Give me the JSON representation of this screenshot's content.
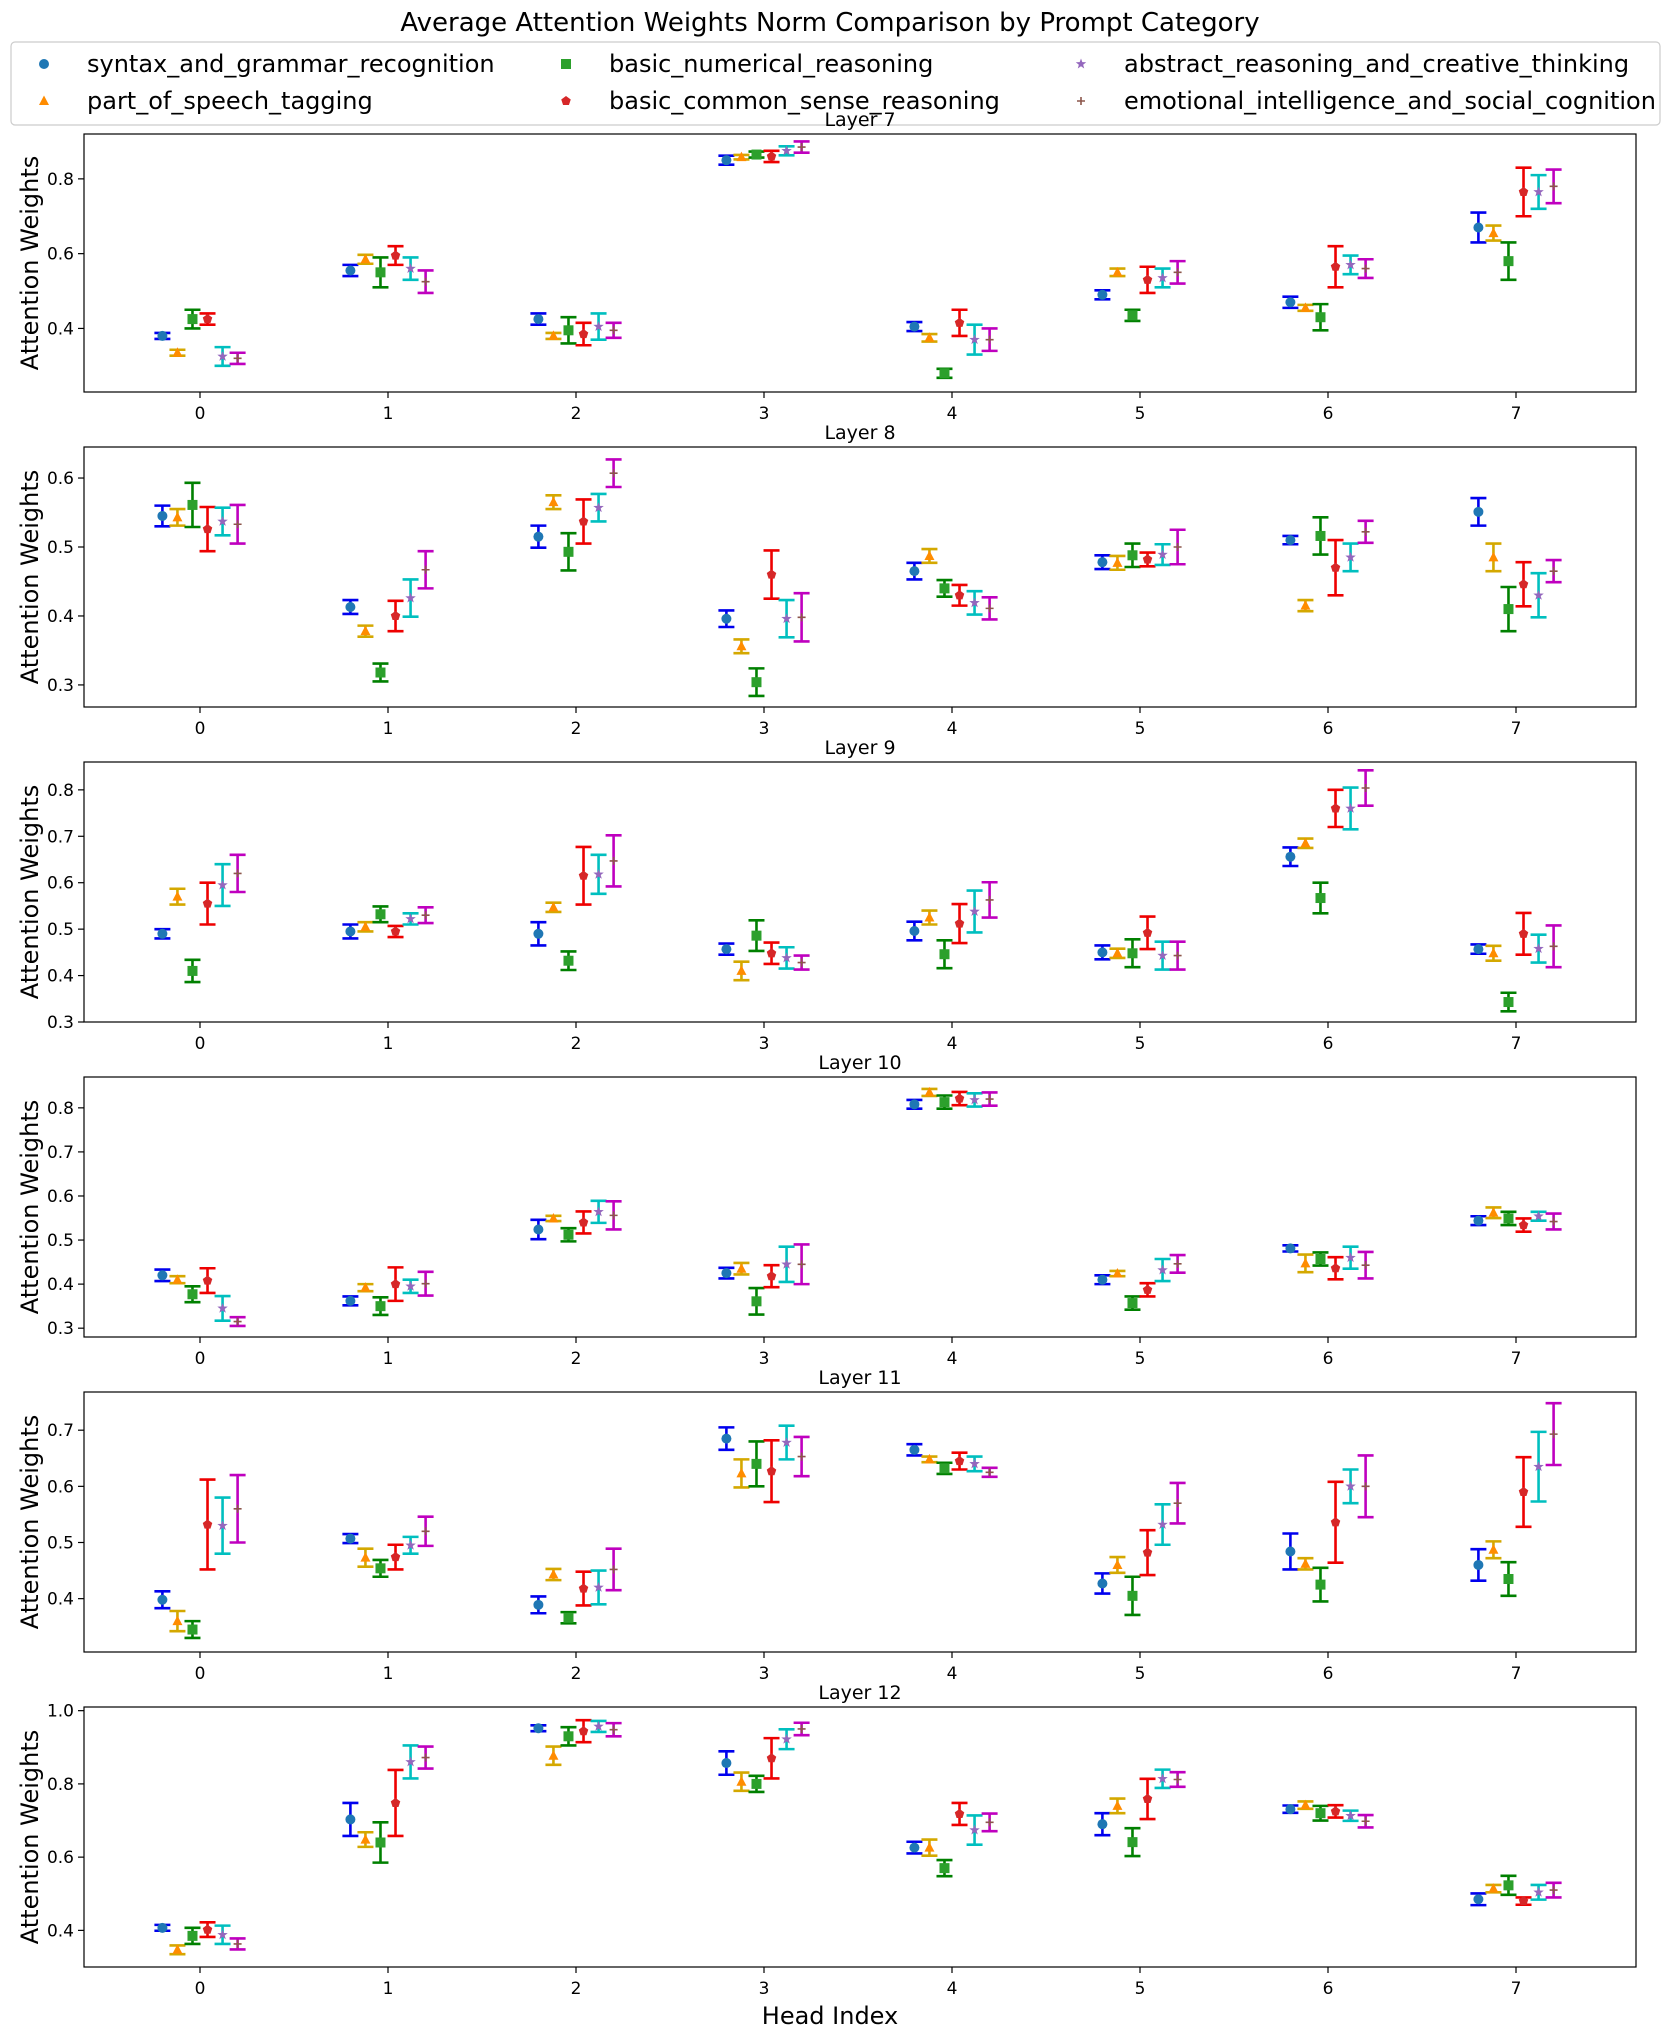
{
  "figure": {
    "title": "Average Attention Weights Norm Comparison by Prompt Category",
    "xlabel": "Head Index",
    "ylabel": "Attention Weights"
  },
  "legend": [
    {
      "name": "syntax_and_grammar_recognition",
      "color": "#1f77b4",
      "errColor": "#0000ee",
      "marker": "circle"
    },
    {
      "name": "part_of_speech_tagging",
      "color": "#ff8c00",
      "errColor": "#d4a800",
      "marker": "triangle"
    },
    {
      "name": "basic_numerical_reasoning",
      "color": "#2ca02c",
      "errColor": "#008000",
      "marker": "square"
    },
    {
      "name": "basic_common_sense_reasoning",
      "color": "#d62728",
      "errColor": "#ee0000",
      "marker": "pentagon"
    },
    {
      "name": "abstract_reasoning_and_creative_thinking",
      "color": "#9467bd",
      "errColor": "#00bfbf",
      "marker": "star"
    },
    {
      "name": "emotional_intelligence_and_social_cognition",
      "color": "#8c564b",
      "errColor": "#bf00bf",
      "marker": "plus"
    }
  ],
  "chart_data": [
    {
      "type": "scatter",
      "title": "Layer 7",
      "xlabel": "",
      "ylabel": "Attention Weights",
      "categories": [
        0,
        1,
        2,
        3,
        4,
        5,
        6,
        7
      ],
      "ylim": [
        0.23,
        0.92
      ],
      "yticks": [
        0.4,
        0.6,
        0.8
      ],
      "series": [
        {
          "name": "syntax_and_grammar_recognition",
          "values": [
            0.38,
            0.555,
            0.425,
            0.85,
            0.405,
            0.49,
            0.47,
            0.67
          ],
          "err": [
            0.008,
            0.015,
            0.015,
            0.012,
            0.012,
            0.012,
            0.015,
            0.04
          ]
        },
        {
          "name": "part_of_speech_tagging",
          "values": [
            0.335,
            0.585,
            0.38,
            0.858,
            0.375,
            0.55,
            0.455,
            0.655
          ],
          "err": [
            0.008,
            0.012,
            0.008,
            0.006,
            0.01,
            0.01,
            0.008,
            0.02
          ]
        },
        {
          "name": "basic_numerical_reasoning",
          "values": [
            0.425,
            0.55,
            0.395,
            0.865,
            0.28,
            0.435,
            0.43,
            0.58
          ],
          "err": [
            0.025,
            0.04,
            0.035,
            0.008,
            0.012,
            0.015,
            0.035,
            0.05
          ]
        },
        {
          "name": "basic_common_sense_reasoning",
          "values": [
            0.425,
            0.595,
            0.385,
            0.86,
            0.415,
            0.53,
            0.565,
            0.765
          ],
          "err": [
            0.015,
            0.025,
            0.03,
            0.015,
            0.035,
            0.035,
            0.055,
            0.065
          ]
        },
        {
          "name": "abstract_reasoning_and_creative_thinking",
          "values": [
            0.325,
            0.56,
            0.405,
            0.875,
            0.37,
            0.535,
            0.57,
            0.765
          ],
          "err": [
            0.025,
            0.03,
            0.035,
            0.012,
            0.04,
            0.025,
            0.025,
            0.045
          ]
        },
        {
          "name": "emotional_intelligence_and_social_cognition",
          "values": [
            0.32,
            0.525,
            0.395,
            0.885,
            0.37,
            0.55,
            0.56,
            0.78
          ],
          "err": [
            0.015,
            0.03,
            0.02,
            0.015,
            0.03,
            0.03,
            0.025,
            0.045
          ]
        }
      ]
    },
    {
      "type": "scatter",
      "title": "Layer 8",
      "xlabel": "",
      "ylabel": "Attention Weights",
      "categories": [
        0,
        1,
        2,
        3,
        4,
        5,
        6,
        7
      ],
      "ylim": [
        0.268,
        0.645
      ],
      "yticks": [
        0.3,
        0.4,
        0.5,
        0.6
      ],
      "series": [
        {
          "name": "syntax_and_grammar_recognition",
          "values": [
            0.545,
            0.413,
            0.515,
            0.396,
            0.465,
            0.478,
            0.51,
            0.551
          ],
          "err": [
            0.015,
            0.01,
            0.016,
            0.012,
            0.012,
            0.01,
            0.006,
            0.02
          ]
        },
        {
          "name": "part_of_speech_tagging",
          "values": [
            0.543,
            0.378,
            0.565,
            0.356,
            0.487,
            0.477,
            0.415,
            0.485
          ],
          "err": [
            0.012,
            0.008,
            0.01,
            0.01,
            0.01,
            0.01,
            0.008,
            0.02
          ]
        },
        {
          "name": "basic_numerical_reasoning",
          "values": [
            0.561,
            0.318,
            0.493,
            0.304,
            0.44,
            0.488,
            0.516,
            0.41
          ],
          "err": [
            0.032,
            0.013,
            0.027,
            0.02,
            0.012,
            0.017,
            0.027,
            0.032
          ]
        },
        {
          "name": "basic_common_sense_reasoning",
          "values": [
            0.526,
            0.4,
            0.537,
            0.46,
            0.43,
            0.482,
            0.47,
            0.446
          ],
          "err": [
            0.032,
            0.022,
            0.032,
            0.035,
            0.015,
            0.01,
            0.04,
            0.032
          ]
        },
        {
          "name": "abstract_reasoning_and_creative_thinking",
          "values": [
            0.537,
            0.426,
            0.557,
            0.396,
            0.419,
            0.489,
            0.485,
            0.43
          ],
          "err": [
            0.02,
            0.027,
            0.02,
            0.027,
            0.017,
            0.015,
            0.02,
            0.032
          ]
        },
        {
          "name": "emotional_intelligence_and_social_cognition",
          "values": [
            0.533,
            0.467,
            0.607,
            0.398,
            0.411,
            0.5,
            0.522,
            0.465
          ],
          "err": [
            0.028,
            0.027,
            0.02,
            0.035,
            0.016,
            0.025,
            0.016,
            0.016
          ]
        }
      ]
    },
    {
      "type": "scatter",
      "title": "Layer 9",
      "xlabel": "",
      "ylabel": "Attention Weights",
      "categories": [
        0,
        1,
        2,
        3,
        4,
        5,
        6,
        7
      ],
      "ylim": [
        0.3,
        0.86
      ],
      "yticks": [
        0.3,
        0.4,
        0.5,
        0.6,
        0.7,
        0.8
      ],
      "series": [
        {
          "name": "syntax_and_grammar_recognition",
          "values": [
            0.49,
            0.495,
            0.49,
            0.457,
            0.496,
            0.45,
            0.656,
            0.457
          ],
          "err": [
            0.01,
            0.015,
            0.025,
            0.012,
            0.02,
            0.015,
            0.02,
            0.01
          ]
        },
        {
          "name": "part_of_speech_tagging",
          "values": [
            0.57,
            0.505,
            0.547,
            0.41,
            0.525,
            0.448,
            0.685,
            0.448
          ],
          "err": [
            0.017,
            0.01,
            0.01,
            0.02,
            0.015,
            0.01,
            0.01,
            0.016
          ]
        },
        {
          "name": "basic_numerical_reasoning",
          "values": [
            0.41,
            0.532,
            0.432,
            0.486,
            0.446,
            0.448,
            0.567,
            0.343
          ],
          "err": [
            0.024,
            0.017,
            0.02,
            0.033,
            0.03,
            0.03,
            0.033,
            0.02
          ]
        },
        {
          "name": "basic_common_sense_reasoning",
          "values": [
            0.555,
            0.495,
            0.615,
            0.448,
            0.512,
            0.492,
            0.76,
            0.49
          ],
          "err": [
            0.045,
            0.012,
            0.062,
            0.023,
            0.042,
            0.035,
            0.04,
            0.045
          ]
        },
        {
          "name": "abstract_reasoning_and_creative_thinking",
          "values": [
            0.595,
            0.522,
            0.618,
            0.438,
            0.538,
            0.443,
            0.76,
            0.458
          ],
          "err": [
            0.045,
            0.012,
            0.042,
            0.023,
            0.045,
            0.03,
            0.045,
            0.03
          ]
        },
        {
          "name": "emotional_intelligence_and_social_cognition",
          "values": [
            0.62,
            0.53,
            0.647,
            0.428,
            0.563,
            0.443,
            0.804,
            0.463
          ],
          "err": [
            0.04,
            0.017,
            0.055,
            0.015,
            0.038,
            0.03,
            0.038,
            0.045
          ]
        }
      ]
    },
    {
      "type": "scatter",
      "title": "Layer 10",
      "xlabel": "",
      "ylabel": "Attention Weights",
      "categories": [
        0,
        1,
        2,
        3,
        4,
        5,
        6,
        7
      ],
      "ylim": [
        0.28,
        0.87
      ],
      "yticks": [
        0.3,
        0.4,
        0.5,
        0.6,
        0.7,
        0.8
      ],
      "series": [
        {
          "name": "syntax_and_grammar_recognition",
          "values": [
            0.42,
            0.362,
            0.524,
            0.425,
            0.808,
            0.41,
            0.481,
            0.544
          ],
          "err": [
            0.013,
            0.01,
            0.022,
            0.012,
            0.01,
            0.01,
            0.007,
            0.01
          ]
        },
        {
          "name": "part_of_speech_tagging",
          "values": [
            0.41,
            0.392,
            0.549,
            0.435,
            0.835,
            0.424,
            0.447,
            0.562
          ],
          "err": [
            0.008,
            0.008,
            0.006,
            0.013,
            0.008,
            0.006,
            0.02,
            0.012
          ]
        },
        {
          "name": "basic_numerical_reasoning",
          "values": [
            0.377,
            0.35,
            0.512,
            0.361,
            0.813,
            0.357,
            0.457,
            0.549
          ],
          "err": [
            0.018,
            0.02,
            0.015,
            0.03,
            0.015,
            0.015,
            0.015,
            0.015
          ]
        },
        {
          "name": "basic_common_sense_reasoning",
          "values": [
            0.408,
            0.4,
            0.54,
            0.418,
            0.821,
            0.387,
            0.436,
            0.534
          ],
          "err": [
            0.028,
            0.038,
            0.025,
            0.025,
            0.015,
            0.015,
            0.025,
            0.015
          ]
        },
        {
          "name": "abstract_reasoning_and_creative_thinking",
          "values": [
            0.345,
            0.395,
            0.564,
            0.445,
            0.818,
            0.432,
            0.46,
            0.554
          ],
          "err": [
            0.028,
            0.015,
            0.025,
            0.04,
            0.015,
            0.025,
            0.025,
            0.01
          ]
        },
        {
          "name": "emotional_intelligence_and_social_cognition",
          "values": [
            0.315,
            0.401,
            0.556,
            0.445,
            0.82,
            0.446,
            0.443,
            0.542
          ],
          "err": [
            0.01,
            0.027,
            0.032,
            0.045,
            0.015,
            0.02,
            0.03,
            0.018
          ]
        }
      ]
    },
    {
      "type": "scatter",
      "title": "Layer 11",
      "xlabel": "",
      "ylabel": "Attention Weights",
      "categories": [
        0,
        1,
        2,
        3,
        4,
        5,
        6,
        7
      ],
      "ylim": [
        0.305,
        0.768
      ],
      "yticks": [
        0.4,
        0.5,
        0.6,
        0.7
      ],
      "series": [
        {
          "name": "syntax_and_grammar_recognition",
          "values": [
            0.398,
            0.507,
            0.389,
            0.685,
            0.665,
            0.427,
            0.484,
            0.46
          ],
          "err": [
            0.015,
            0.008,
            0.015,
            0.02,
            0.01,
            0.018,
            0.032,
            0.028
          ]
        },
        {
          "name": "part_of_speech_tagging",
          "values": [
            0.36,
            0.473,
            0.443,
            0.623,
            0.648,
            0.46,
            0.462,
            0.487
          ],
          "err": [
            0.018,
            0.016,
            0.01,
            0.025,
            0.005,
            0.014,
            0.01,
            0.015
          ]
        },
        {
          "name": "basic_numerical_reasoning",
          "values": [
            0.345,
            0.454,
            0.366,
            0.64,
            0.632,
            0.405,
            0.425,
            0.435
          ],
          "err": [
            0.015,
            0.015,
            0.01,
            0.04,
            0.01,
            0.034,
            0.03,
            0.03
          ]
        },
        {
          "name": "basic_common_sense_reasoning",
          "values": [
            0.532,
            0.474,
            0.418,
            0.627,
            0.645,
            0.482,
            0.536,
            0.59
          ],
          "err": [
            0.08,
            0.022,
            0.03,
            0.055,
            0.015,
            0.04,
            0.072,
            0.062
          ]
        },
        {
          "name": "abstract_reasoning_and_creative_thinking",
          "values": [
            0.53,
            0.495,
            0.42,
            0.678,
            0.64,
            0.532,
            0.6,
            0.635
          ],
          "err": [
            0.05,
            0.015,
            0.03,
            0.03,
            0.013,
            0.036,
            0.03,
            0.062
          ]
        },
        {
          "name": "emotional_intelligence_and_social_cognition",
          "values": [
            0.56,
            0.52,
            0.452,
            0.653,
            0.625,
            0.57,
            0.6,
            0.693
          ],
          "err": [
            0.06,
            0.026,
            0.037,
            0.035,
            0.008,
            0.036,
            0.055,
            0.055
          ]
        }
      ]
    },
    {
      "type": "scatter",
      "title": "Layer 12",
      "xlabel": "Head Index",
      "ylabel": "Attention Weights",
      "categories": [
        0,
        1,
        2,
        3,
        4,
        5,
        6,
        7
      ],
      "ylim": [
        0.3,
        1.01
      ],
      "yticks": [
        0.4,
        0.6,
        0.8,
        1.0
      ],
      "series": [
        {
          "name": "syntax_and_grammar_recognition",
          "values": [
            0.407,
            0.703,
            0.952,
            0.857,
            0.626,
            0.69,
            0.731,
            0.485
          ],
          "err": [
            0.008,
            0.045,
            0.008,
            0.032,
            0.016,
            0.03,
            0.01,
            0.016
          ]
        },
        {
          "name": "part_of_speech_tagging",
          "values": [
            0.347,
            0.648,
            0.877,
            0.806,
            0.626,
            0.74,
            0.742,
            0.514
          ],
          "err": [
            0.012,
            0.02,
            0.025,
            0.025,
            0.022,
            0.02,
            0.01,
            0.01
          ]
        },
        {
          "name": "basic_numerical_reasoning",
          "values": [
            0.385,
            0.64,
            0.93,
            0.8,
            0.57,
            0.641,
            0.72,
            0.523
          ],
          "err": [
            0.022,
            0.055,
            0.025,
            0.022,
            0.022,
            0.038,
            0.02,
            0.026
          ]
        },
        {
          "name": "basic_common_sense_reasoning",
          "values": [
            0.402,
            0.748,
            0.944,
            0.87,
            0.718,
            0.759,
            0.725,
            0.48
          ],
          "err": [
            0.02,
            0.09,
            0.03,
            0.055,
            0.03,
            0.055,
            0.017,
            0.01
          ]
        },
        {
          "name": "abstract_reasoning_and_creative_thinking",
          "values": [
            0.388,
            0.86,
            0.957,
            0.922,
            0.674,
            0.814,
            0.713,
            0.504
          ],
          "err": [
            0.025,
            0.045,
            0.015,
            0.027,
            0.04,
            0.025,
            0.014,
            0.02
          ]
        },
        {
          "name": "emotional_intelligence_and_social_cognition",
          "values": [
            0.363,
            0.872,
            0.948,
            0.95,
            0.695,
            0.812,
            0.698,
            0.51
          ],
          "err": [
            0.015,
            0.03,
            0.018,
            0.017,
            0.024,
            0.02,
            0.017,
            0.02
          ]
        }
      ]
    }
  ]
}
